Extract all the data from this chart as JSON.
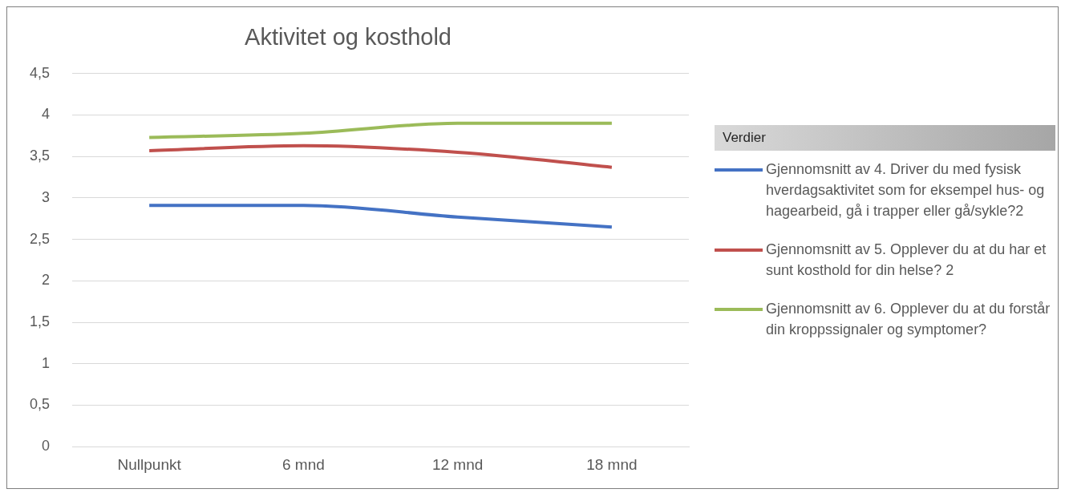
{
  "chart_data": {
    "type": "line",
    "title": "Aktivitet og kosthold",
    "legend_title": "Verdier",
    "legend": "right",
    "grid": "y",
    "marker": "none",
    "line_style": "solid",
    "categories": [
      "Nullpunkt",
      "6 mnd",
      "12 mnd",
      "18 mnd"
    ],
    "ylim": [
      0,
      4.5
    ],
    "yticks": [
      0,
      {
        "value": 0.5,
        "label": "0,5"
      },
      1,
      {
        "value": 1.5,
        "label": "1,5"
      },
      2,
      {
        "value": 2.5,
        "label": "2,5"
      },
      3,
      {
        "value": 3.5,
        "label": "3,5"
      },
      4,
      {
        "value": 4.5,
        "label": "4,5"
      }
    ],
    "series": [
      {
        "name": "Gjennomsnitt av 4. Driver du med fysisk hverdagsaktivitet som for eksempel hus- og hagearbeid, gå i trapper eller gå/sykle?2",
        "color": "#4472c4",
        "values": [
          2.91,
          2.91,
          2.77,
          2.65
        ]
      },
      {
        "name": "Gjennomsnitt av 5. Opplever du at du har et sunt kosthold for din helse? 2",
        "color": "#c0504d",
        "values": [
          3.57,
          3.63,
          3.55,
          3.37
        ]
      },
      {
        "name": "Gjennomsnitt av 6. Opplever du at du forstår din kroppssignaler og symptomer?",
        "color": "#9bbb59",
        "values": [
          3.73,
          3.78,
          3.9,
          3.9
        ]
      }
    ]
  }
}
